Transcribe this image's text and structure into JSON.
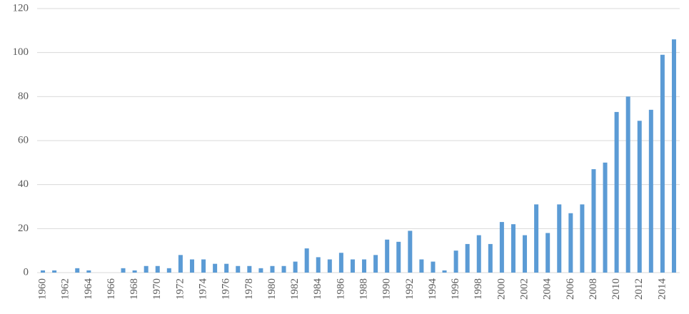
{
  "chart_data": {
    "type": "bar",
    "categories": [
      "1960",
      null,
      "1962",
      null,
      "1964",
      null,
      "1966",
      null,
      "1968",
      null,
      "1970",
      null,
      "1972",
      null,
      "1974",
      null,
      "1976",
      null,
      "1978",
      null,
      "1980",
      null,
      "1982",
      null,
      "1984",
      null,
      "1986",
      null,
      "1988",
      null,
      "1990",
      null,
      "1992",
      null,
      "1994",
      null,
      "1996",
      null,
      "1998",
      null,
      "2000",
      null,
      "2002",
      null,
      "2004",
      null,
      "2006",
      null,
      "2008",
      null,
      "2010",
      null,
      "2012",
      null,
      "2014",
      null
    ],
    "values": [
      1,
      1,
      0,
      2,
      1,
      0,
      0,
      2,
      1,
      3,
      3,
      2,
      8,
      6,
      6,
      4,
      4,
      3,
      3,
      2,
      3,
      3,
      5,
      11,
      7,
      6,
      9,
      6,
      6,
      8,
      15,
      14,
      19,
      6,
      5,
      1,
      10,
      13,
      17,
      13,
      23,
      22,
      17,
      31,
      18,
      31,
      27,
      31,
      47,
      50,
      73,
      80,
      69,
      74,
      99,
      106
    ],
    "color": "#5b9bd5",
    "ylim": [
      0,
      120
    ],
    "yticks": [
      0,
      20,
      40,
      60,
      80,
      100,
      120
    ],
    "grid": true
  }
}
